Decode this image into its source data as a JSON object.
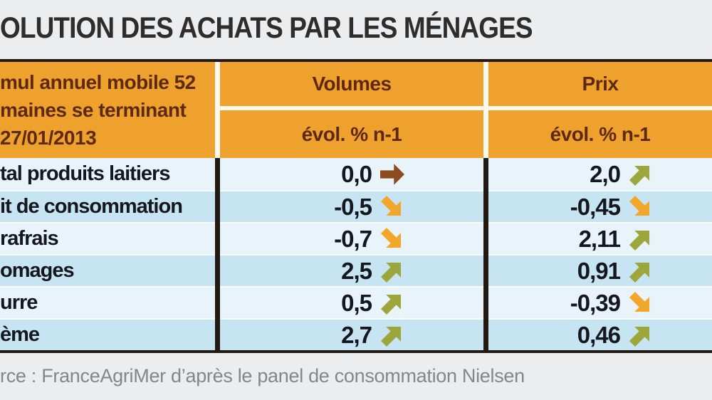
{
  "title": "OLUTION DES ACHATS PAR LES MÉNAGES",
  "header": {
    "period_lines": [
      "mul annuel mobile 52",
      "maines se terminant",
      "27/01/2013"
    ],
    "columns": [
      {
        "label": "Volumes",
        "sublabel": "évol. % n-1"
      },
      {
        "label": "Prix",
        "sublabel": "évol. % n-1"
      }
    ]
  },
  "rows": [
    {
      "label": "tal produits laitiers",
      "volume": "0,0",
      "volume_trend": "flat",
      "price": "2,0",
      "price_trend": "up"
    },
    {
      "label": "it de consommation",
      "volume": "-0,5",
      "volume_trend": "down",
      "price": "-0,45",
      "price_trend": "down"
    },
    {
      "label": "rafrais",
      "volume": "-0,7",
      "volume_trend": "down",
      "price": "2,11",
      "price_trend": "up"
    },
    {
      "label": "omages",
      "volume": "2,5",
      "volume_trend": "up",
      "price": "0,91",
      "price_trend": "up"
    },
    {
      "label": "urre",
      "volume": "0,5",
      "volume_trend": "up",
      "price": "-0,39",
      "price_trend": "down"
    },
    {
      "label": "ème",
      "volume": "2,7",
      "volume_trend": "up",
      "price": "0,46",
      "price_trend": "up"
    }
  ],
  "source": "rce : FranceAgriMer d’après le panel de consommation Nielsen",
  "colors": {
    "background": "#ECEDEF",
    "orange_header": "#EFA12D",
    "header_text": "#5E2911",
    "row_light": "#E8F3FA",
    "row_dark": "#C7E4F2",
    "data_text": "#14171D",
    "arrow_up": "#9CA63B",
    "arrow_down": "#F2A72B",
    "arrow_flat": "#8C4A1F",
    "border_dark": "#221A12",
    "divider_light": "#FBF8EC",
    "source_text": "#85858A",
    "title_text": "#2F2D2B"
  },
  "chart_data": {
    "type": "table",
    "title": "OLUTION DES ACHATS PAR LES MÉNAGES",
    "period": "mul annuel mobile 52 maines se terminant 27/01/2013",
    "columns": [
      "",
      "Volumes évol. % n-1",
      "Prix évol. % n-1"
    ],
    "rows": [
      {
        "category": "tal produits laitiers",
        "volume_evol_pct": 0.0,
        "volume_trend": "flat",
        "price_evol_pct": 2.0,
        "price_trend": "up"
      },
      {
        "category": "it de consommation",
        "volume_evol_pct": -0.5,
        "volume_trend": "down",
        "price_evol_pct": -0.45,
        "price_trend": "down"
      },
      {
        "category": "rafrais",
        "volume_evol_pct": -0.7,
        "volume_trend": "down",
        "price_evol_pct": 2.11,
        "price_trend": "up"
      },
      {
        "category": "omages",
        "volume_evol_pct": 2.5,
        "volume_trend": "up",
        "price_evol_pct": 0.91,
        "price_trend": "up"
      },
      {
        "category": "urre",
        "volume_evol_pct": 0.5,
        "volume_trend": "up",
        "price_evol_pct": -0.39,
        "price_trend": "down"
      },
      {
        "category": "ème",
        "volume_evol_pct": 2.7,
        "volume_trend": "up",
        "price_evol_pct": 0.46,
        "price_trend": "up"
      }
    ],
    "source": "rce : FranceAgriMer d’après le panel de consommation Nielsen"
  }
}
